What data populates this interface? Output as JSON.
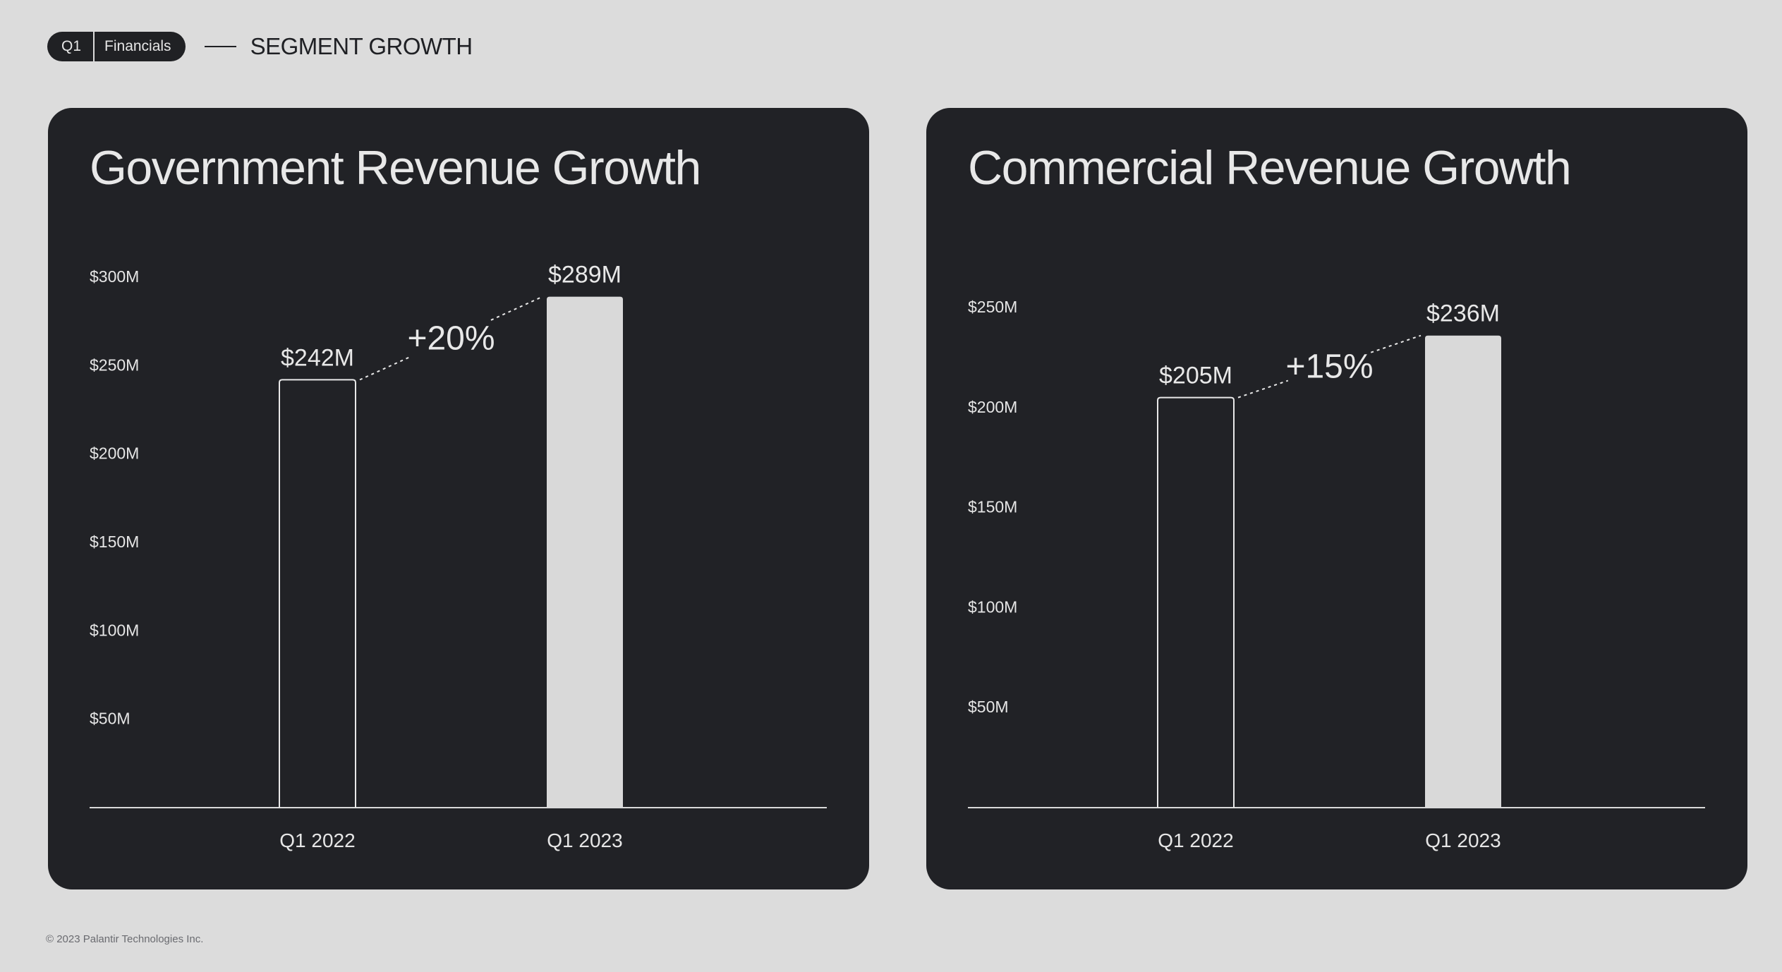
{
  "header": {
    "pill_left": "Q1",
    "pill_right": "Financials",
    "section_title": "SEGMENT GROWTH"
  },
  "footer": {
    "copyright": "© 2023 Palantir Technologies Inc."
  },
  "colors": {
    "background": "#dcdcdc",
    "card": "#212226",
    "bar_fill": "#d9d9d9",
    "text_light": "#e8e8e8"
  },
  "chart_data": [
    {
      "type": "bar",
      "title": "Government Revenue Growth",
      "categories": [
        "Q1 2022",
        "Q1 2023"
      ],
      "values": [
        242,
        289
      ],
      "value_labels": [
        "$242M",
        "$289M"
      ],
      "growth_label": "+20%",
      "yticks": [
        {
          "value": 50,
          "label": "$50M"
        },
        {
          "value": 100,
          "label": "$100M"
        },
        {
          "value": 150,
          "label": "$150M"
        },
        {
          "value": 200,
          "label": "$200M"
        },
        {
          "value": 250,
          "label": "$250M"
        },
        {
          "value": 300,
          "label": "$300M"
        }
      ],
      "ylim": [
        0,
        300
      ],
      "bar_styles": [
        "outline",
        "filled"
      ],
      "grid": false
    },
    {
      "type": "bar",
      "title": "Commercial Revenue Growth",
      "categories": [
        "Q1 2022",
        "Q1 2023"
      ],
      "values": [
        205,
        236
      ],
      "value_labels": [
        "$205M",
        "$236M"
      ],
      "growth_label": "+15%",
      "yticks": [
        {
          "value": 50,
          "label": "$50M"
        },
        {
          "value": 100,
          "label": "$100M"
        },
        {
          "value": 150,
          "label": "$150M"
        },
        {
          "value": 200,
          "label": "$200M"
        },
        {
          "value": 250,
          "label": "$250M"
        }
      ],
      "ylim": [
        0,
        250
      ],
      "bar_styles": [
        "outline",
        "filled"
      ],
      "grid": false
    }
  ]
}
